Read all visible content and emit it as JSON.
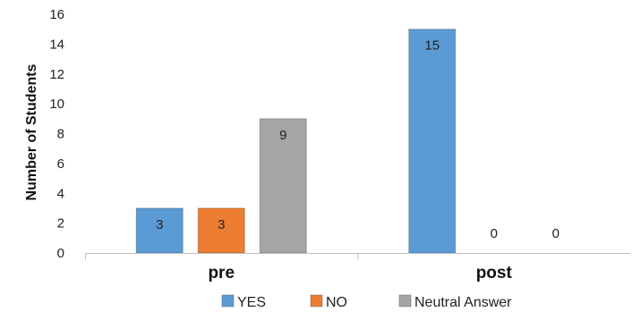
{
  "chart_data": {
    "type": "bar",
    "ylabel": "Number of Students",
    "xlabel": "",
    "ylim": [
      0,
      16
    ],
    "yticks": [
      0,
      2,
      4,
      6,
      8,
      10,
      12,
      14,
      16
    ],
    "categories": [
      "pre",
      "post"
    ],
    "series": [
      {
        "name": "YES",
        "values": [
          3,
          15
        ],
        "color": "#5b9bd5"
      },
      {
        "name": "NO",
        "values": [
          3,
          0
        ],
        "color": "#ed7d31"
      },
      {
        "name": "Neutral Answer",
        "values": [
          9,
          0
        ],
        "color": "#a5a5a5"
      }
    ],
    "data_labels": true,
    "grid": false,
    "legend_position": "bottom"
  }
}
